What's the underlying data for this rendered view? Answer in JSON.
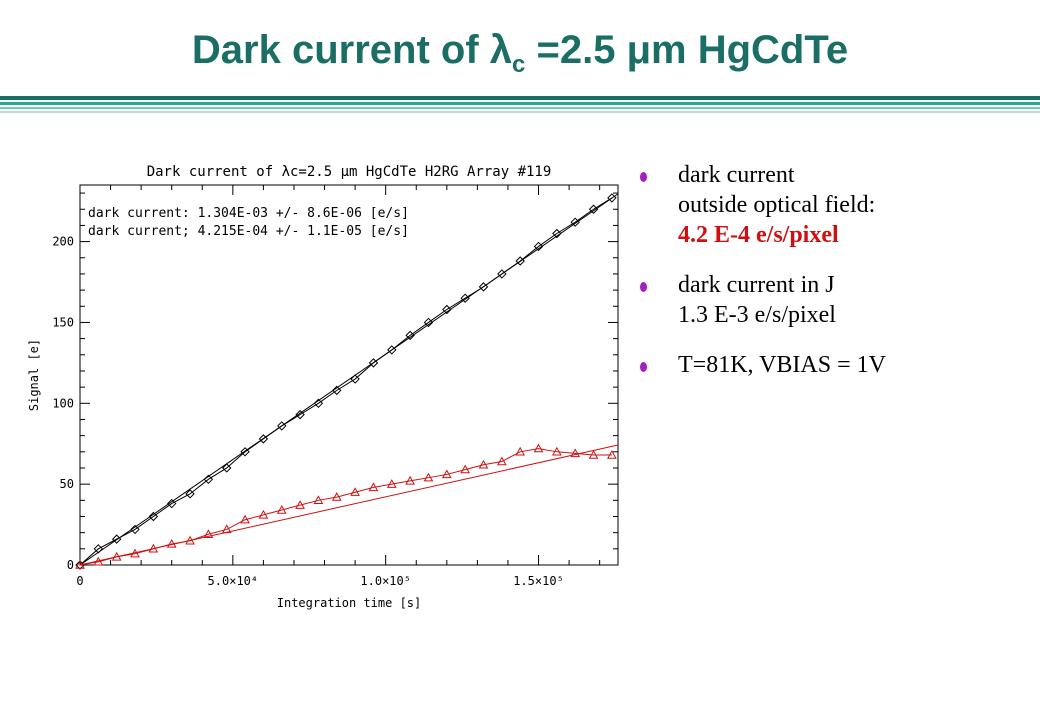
{
  "slide": {
    "title_main": "Dark current of λ",
    "title_sub": "c",
    "title_rest": " =2.5 μm HgCdTe",
    "rule_colors": [
      "#1a6e66",
      "#2aa59a",
      "#7bc8c0",
      "#b8ddd8"
    ]
  },
  "bullets": [
    {
      "lines": [
        "dark current",
        "outside optical field:"
      ],
      "highlight": "4.2 E-4 e/s/pixel"
    },
    {
      "lines": [
        "dark current in J",
        "1.3 E-3 e/s/pixel"
      ],
      "highlight": ""
    },
    {
      "lines": [
        "T=81K, VBIAS = 1V"
      ],
      "highlight": ""
    }
  ],
  "chart_data": {
    "type": "scatter",
    "title": "Dark current of λc=2.5 μm HgCdTe H2RG Array #119",
    "xlabel": "Integration time [s]",
    "ylabel": "Signal [e]",
    "xlim": [
      0,
      176000
    ],
    "ylim": [
      0,
      235
    ],
    "x_ticks": [
      0,
      50000,
      100000,
      150000
    ],
    "x_tick_labels": [
      "0",
      "5.0×10⁴",
      "1.0×10⁵",
      "1.5×10⁵"
    ],
    "y_ticks": [
      0,
      50,
      100,
      150,
      200
    ],
    "y_tick_labels": [
      "0",
      "50",
      "100",
      "150",
      "200"
    ],
    "annotations": [
      "dark current:  1.304E-03 +/-  8.6E-06 [e/s]",
      "dark current;  4.215E-04 +/-  1.1E-05 [e/s]"
    ],
    "grid": false,
    "series": [
      {
        "color": "#000000",
        "marker": "diamond",
        "slope": 0.001304,
        "intercept": 0,
        "x": [
          0,
          6000,
          12000,
          18000,
          24000,
          30000,
          36000,
          42000,
          48000,
          54000,
          60000,
          66000,
          72000,
          78000,
          84000,
          90000,
          96000,
          102000,
          108000,
          114000,
          120000,
          126000,
          132000,
          138000,
          144000,
          150000,
          156000,
          162000,
          168000,
          174000
        ],
        "y": [
          0,
          10,
          16,
          22,
          30,
          38,
          44,
          53,
          60,
          70,
          78,
          86,
          93,
          100,
          108,
          115,
          125,
          133,
          142,
          150,
          158,
          165,
          172,
          180,
          188,
          197,
          205,
          212,
          220,
          227
        ]
      },
      {
        "color": "#d01010",
        "marker": "triangle",
        "slope": 0.0004215,
        "intercept": 0,
        "x": [
          0,
          6000,
          12000,
          18000,
          24000,
          30000,
          36000,
          42000,
          48000,
          54000,
          60000,
          66000,
          72000,
          78000,
          84000,
          90000,
          96000,
          102000,
          108000,
          114000,
          120000,
          126000,
          132000,
          138000,
          144000,
          150000,
          156000,
          162000,
          168000,
          174000
        ],
        "y": [
          0,
          2,
          5,
          7,
          10,
          13,
          15,
          19,
          22,
          28,
          31,
          34,
          37,
          40,
          42,
          45,
          48,
          50,
          52,
          54,
          56,
          59,
          62,
          64,
          70,
          72,
          70,
          69,
          68,
          68
        ]
      }
    ]
  }
}
